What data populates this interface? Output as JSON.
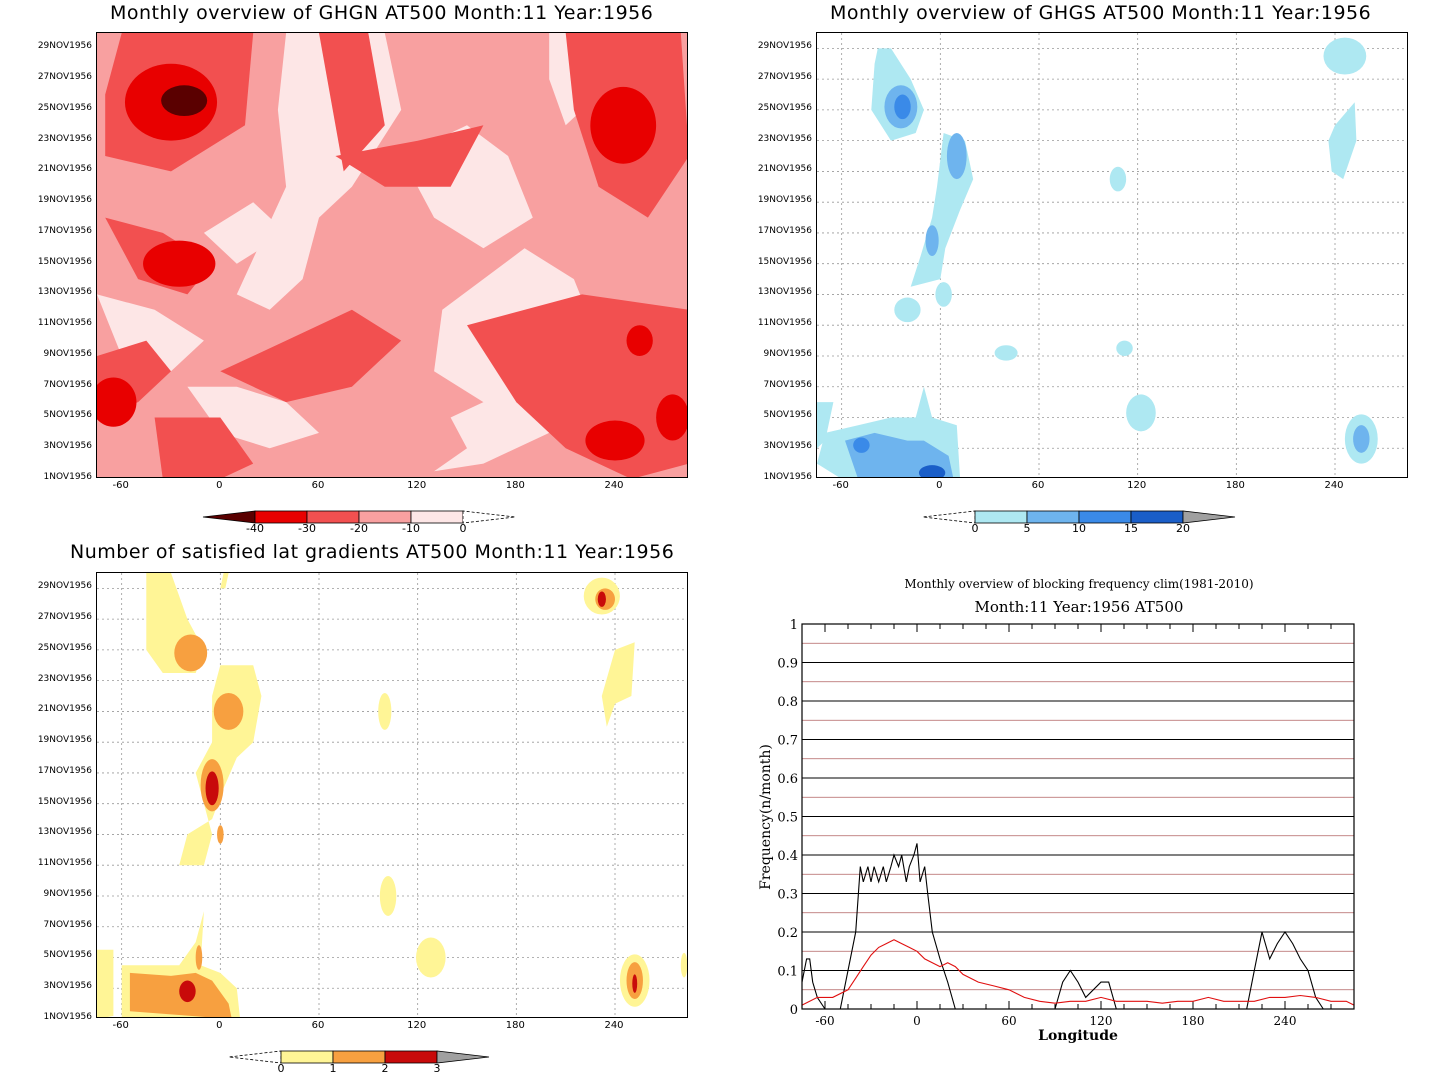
{
  "panels": {
    "ghgn": {
      "title": "Monthly overview of GHGN AT500 Month:11 Year:1956",
      "y_ticks": [
        "29NOV1956",
        "27NOV1956",
        "25NOV1956",
        "23NOV1956",
        "21NOV1956",
        "19NOV1956",
        "17NOV1956",
        "15NOV1956",
        "13NOV1956",
        "11NOV1956",
        "9NOV1956",
        "7NOV1956",
        "5NOV1956",
        "3NOV1956",
        "1NOV1956"
      ],
      "x_ticks": [
        "-60",
        "0",
        "60",
        "120",
        "180",
        "240"
      ],
      "colorbar": {
        "labels": [
          "-40",
          "-30",
          "-20",
          "-10",
          "0"
        ],
        "colors": [
          "#5a0000",
          "#e80000",
          "#f25050",
          "#f8a0a0",
          "#fde6e6"
        ]
      }
    },
    "ghgs": {
      "title": "Monthly overview of GHGS AT500 Month:11 Year:1956",
      "y_ticks": [
        "29NOV1956",
        "27NOV1956",
        "25NOV1956",
        "23NOV1956",
        "21NOV1956",
        "19NOV1956",
        "17NOV1956",
        "15NOV1956",
        "13NOV1956",
        "11NOV1956",
        "9NOV1956",
        "7NOV1956",
        "5NOV1956",
        "3NOV1956",
        "1NOV1956"
      ],
      "x_ticks": [
        "-60",
        "0",
        "60",
        "120",
        "180",
        "240"
      ],
      "colorbar": {
        "labels": [
          "0",
          "5",
          "10",
          "15",
          "20"
        ],
        "colors": [
          "#aee8f2",
          "#6eb4ee",
          "#3a8ae8",
          "#1a5ec8",
          "#a0a0a0"
        ]
      }
    },
    "lat": {
      "title": "Number of satisfied lat gradients AT500 Month:11 Year:1956",
      "y_ticks": [
        "29NOV1956",
        "27NOV1956",
        "25NOV1956",
        "23NOV1956",
        "21NOV1956",
        "19NOV1956",
        "17NOV1956",
        "15NOV1956",
        "13NOV1956",
        "11NOV1956",
        "9NOV1956",
        "7NOV1956",
        "5NOV1956",
        "3NOV1956",
        "1NOV1956"
      ],
      "x_ticks": [
        "-60",
        "0",
        "60",
        "120",
        "180",
        "240"
      ],
      "colorbar": {
        "labels": [
          "0",
          "1",
          "2",
          "3"
        ],
        "colors": [
          "#fff596",
          "#f7a040",
          "#c80a0a",
          "#a0a0a0"
        ]
      }
    },
    "freq": {
      "title": "Monthly overview of blocking frequency clim(1981-2010)",
      "subtitle": "Month:11 Year:1956  AT500",
      "ylabel": "Frequency(n/month)",
      "xlabel": "Longitude",
      "y_ticks": [
        "1",
        "0.9",
        "0.8",
        "0.7",
        "0.6",
        "0.5",
        "0.4",
        "0.3",
        "0.2",
        "0.1",
        "0"
      ],
      "x_ticks": [
        "-60",
        "0",
        "60",
        "120",
        "180",
        "240"
      ]
    }
  },
  "chart_data": [
    {
      "type": "heatmap",
      "title": "Monthly overview of GHGN AT500 Month:11 Year:1956",
      "x_range": [
        -75,
        285
      ],
      "y_range": [
        "1NOV1956",
        "30NOV1956"
      ],
      "levels": [
        -40,
        -30,
        -20,
        -10,
        0
      ],
      "colors": [
        "#5a0000",
        "#e80000",
        "#f25050",
        "#f8a0a0",
        "#fde6e6"
      ]
    },
    {
      "type": "heatmap",
      "title": "Monthly overview of GHGS AT500 Month:11 Year:1956",
      "x_range": [
        -75,
        285
      ],
      "y_range": [
        "1NOV1956",
        "30NOV1956"
      ],
      "levels": [
        0,
        5,
        10,
        15,
        20
      ],
      "colors": [
        "#aee8f2",
        "#6eb4ee",
        "#3a8ae8",
        "#1a5ec8",
        "#a0a0a0"
      ]
    },
    {
      "type": "heatmap",
      "title": "Number of satisfied lat gradients AT500 Month:11 Year:1956",
      "x_range": [
        -75,
        285
      ],
      "y_range": [
        "1NOV1956",
        "30NOV1956"
      ],
      "levels": [
        0,
        1,
        2,
        3
      ],
      "colors": [
        "#fff596",
        "#f7a040",
        "#c80a0a",
        "#a0a0a0"
      ]
    },
    {
      "type": "line",
      "title": "Monthly overview of blocking frequency clim(1981-2010)",
      "subtitle": "Month:11 Year:1956  AT500",
      "xlabel": "Longitude",
      "ylabel": "Frequency(n/month)",
      "xlim": [
        -75,
        285
      ],
      "ylim": [
        0,
        1
      ],
      "series": [
        {
          "color": "#000000",
          "x": [
            -75,
            -72,
            -70,
            -68,
            -65,
            -60,
            -55,
            -50,
            -45,
            -40,
            -37,
            -35,
            -32,
            -30,
            -28,
            -25,
            -22,
            -20,
            -17,
            -15,
            -12,
            -10,
            -7,
            -5,
            -2,
            0,
            2,
            5,
            7,
            10,
            15,
            20,
            25,
            30,
            40,
            60,
            80,
            90,
            95,
            100,
            105,
            110,
            120,
            125,
            130,
            140,
            150,
            160,
            180,
            200,
            210,
            215,
            220,
            225,
            230,
            235,
            240,
            245,
            250,
            255,
            260,
            265,
            270,
            280,
            285
          ],
          "y": [
            0.07,
            0.13,
            0.13,
            0.07,
            0.03,
            0,
            0,
            0,
            0.1,
            0.2,
            0.37,
            0.33,
            0.37,
            0.33,
            0.37,
            0.33,
            0.37,
            0.33,
            0.37,
            0.4,
            0.37,
            0.4,
            0.33,
            0.37,
            0.4,
            0.43,
            0.33,
            0.37,
            0.3,
            0.2,
            0.13,
            0.07,
            0,
            0,
            0,
            0,
            0,
            0,
            0.07,
            0.1,
            0.07,
            0.03,
            0.07,
            0.07,
            0,
            0,
            0,
            0,
            0,
            0,
            0,
            0,
            0.1,
            0.2,
            0.13,
            0.17,
            0.2,
            0.17,
            0.13,
            0.1,
            0.03,
            0,
            0,
            0,
            0
          ]
        },
        {
          "color": "#e01010",
          "x": [
            -75,
            -65,
            -55,
            -45,
            -40,
            -35,
            -30,
            -25,
            -20,
            -15,
            -10,
            -5,
            0,
            5,
            10,
            15,
            20,
            25,
            30,
            40,
            50,
            60,
            70,
            80,
            90,
            100,
            110,
            120,
            130,
            140,
            150,
            160,
            170,
            180,
            190,
            200,
            210,
            220,
            230,
            240,
            250,
            260,
            270,
            280,
            285
          ],
          "y": [
            0.01,
            0.03,
            0.03,
            0.05,
            0.08,
            0.11,
            0.14,
            0.16,
            0.17,
            0.18,
            0.17,
            0.16,
            0.15,
            0.13,
            0.12,
            0.11,
            0.12,
            0.11,
            0.09,
            0.07,
            0.06,
            0.05,
            0.03,
            0.02,
            0.015,
            0.02,
            0.02,
            0.03,
            0.02,
            0.02,
            0.02,
            0.015,
            0.02,
            0.02,
            0.03,
            0.02,
            0.02,
            0.02,
            0.03,
            0.03,
            0.035,
            0.03,
            0.02,
            0.02,
            0.01
          ]
        }
      ]
    }
  ]
}
